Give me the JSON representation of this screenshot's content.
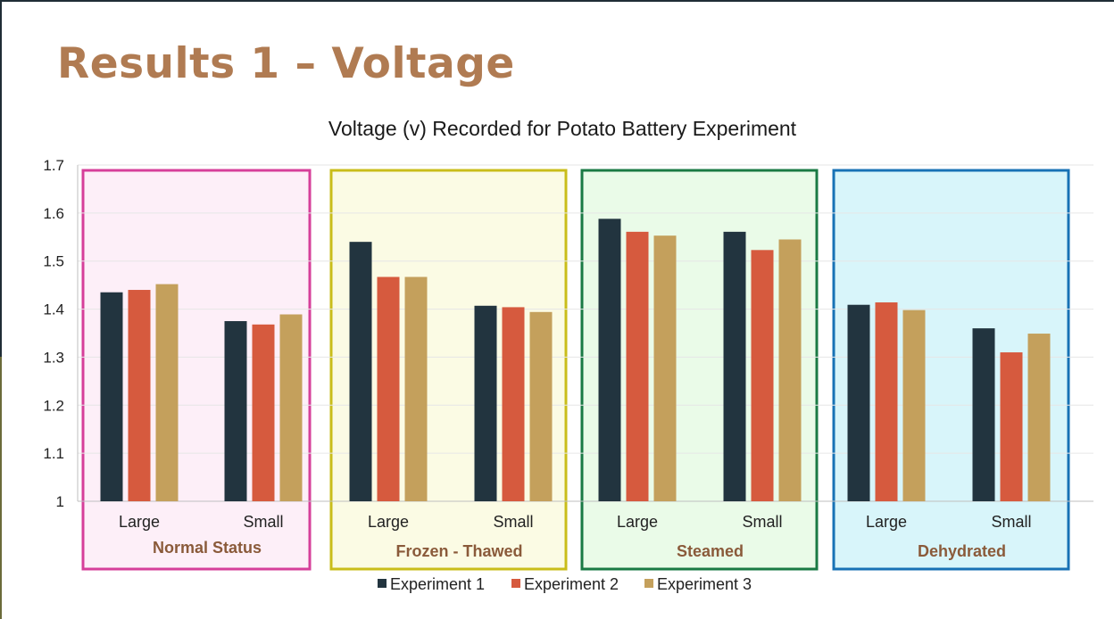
{
  "slide": {
    "title": "Results 1 – Voltage"
  },
  "chart_data": {
    "type": "bar",
    "title": "Voltage (v) Recorded for Potato Battery Experiment",
    "xlabel": "",
    "ylabel": "",
    "ylim": [
      1,
      1.7
    ],
    "yticks": [
      "1",
      "1.1",
      "1.2",
      "1.3",
      "1.4",
      "1.5",
      "1.6",
      "1.7"
    ],
    "grid": true,
    "legend_position": "bottom",
    "groups": [
      {
        "label": "Normal Status",
        "color": "#d63f9a",
        "fill": "#fdeff8",
        "categories": [
          "Large",
          "Small"
        ]
      },
      {
        "label": "Frozen - Thawed",
        "color": "#c9bd1a",
        "fill": "#fbfbe4",
        "categories": [
          "Large",
          "Small"
        ]
      },
      {
        "label": "Steamed",
        "color": "#1a7a44",
        "fill": "#eafbe8",
        "categories": [
          "Large",
          "Small"
        ]
      },
      {
        "label": "Dehydrated",
        "color": "#1872b5",
        "fill": "#d8f5fa",
        "categories": [
          "Large",
          "Small"
        ]
      }
    ],
    "series": [
      {
        "name": "Experiment 1",
        "color": "#22343f",
        "values": [
          1.435,
          1.375,
          1.54,
          1.407,
          1.588,
          1.561,
          1.409,
          1.36
        ]
      },
      {
        "name": "Experiment 2",
        "color": "#d65a3e",
        "values": [
          1.44,
          1.368,
          1.467,
          1.404,
          1.561,
          1.523,
          1.414,
          1.31
        ]
      },
      {
        "name": "Experiment 3",
        "color": "#c4a05c",
        "values": [
          1.452,
          1.389,
          1.467,
          1.394,
          1.553,
          1.545,
          1.398,
          1.349
        ]
      }
    ]
  }
}
